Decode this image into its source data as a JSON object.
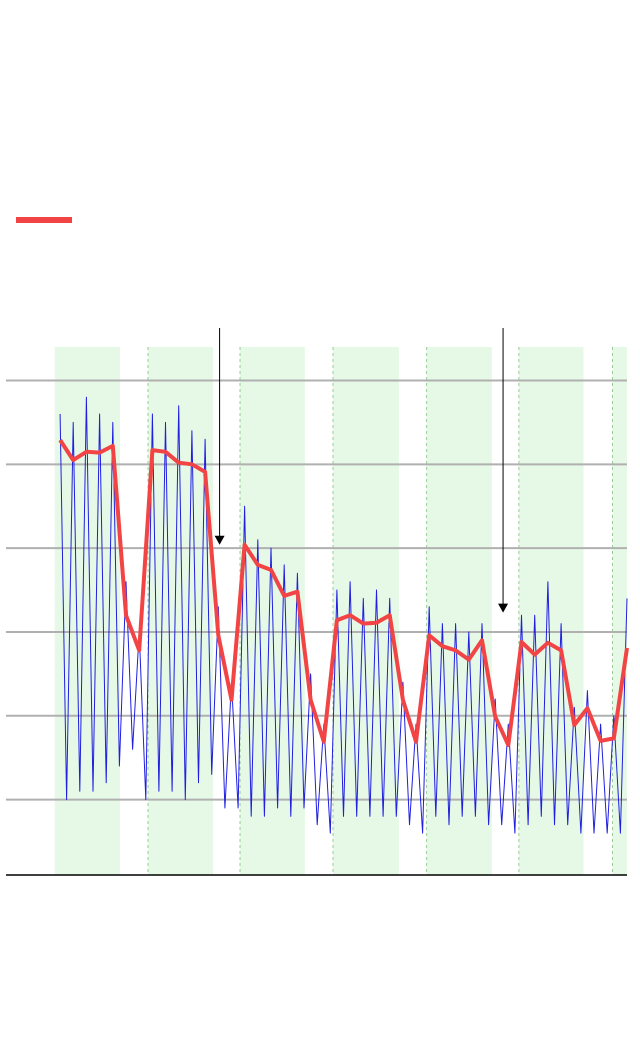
{
  "chart_data": {
    "type": "line",
    "xlim": [
      -4.1,
      43
    ],
    "ylim": [
      0.1,
      6.4
    ],
    "grid_lines": [
      1,
      2,
      3,
      4,
      5,
      6
    ],
    "bands": [
      [
        -0.4,
        4.55
      ],
      [
        6.67,
        11.6
      ],
      [
        13.65,
        18.57
      ],
      [
        20.7,
        25.7
      ],
      [
        27.8,
        32.75
      ],
      [
        34.8,
        39.7
      ],
      [
        41.9,
        43
      ]
    ],
    "band_color": "#e6f9e6",
    "arrows": [
      {
        "x": 12.1,
        "y": 4.04
      },
      {
        "x": 33.6,
        "y": 3.23
      }
    ],
    "series": [
      {
        "color": "#1f1fe0",
        "x": [
          0,
          0.5,
          1,
          1.5,
          2,
          2.5,
          3,
          3.5,
          4,
          4.5,
          5,
          5.5,
          6,
          6.5,
          7,
          7.5,
          8,
          8.5,
          9,
          9.5,
          10,
          10.5,
          11,
          11.5,
          12,
          12.5,
          13,
          13.5,
          14,
          14.5,
          15,
          15.5,
          16,
          16.5,
          17,
          17.5,
          18,
          18.5,
          19,
          19.5,
          20,
          20.5,
          21,
          21.5,
          22,
          22.5,
          23,
          23.5,
          24,
          24.5,
          25,
          25.5,
          26,
          26.5,
          27,
          27.5,
          28,
          28.5,
          29,
          29.5,
          30,
          30.5,
          31,
          31.5,
          32,
          32.5,
          33,
          33.5,
          34,
          34.5,
          35,
          35.5,
          36,
          36.5,
          37,
          37.5,
          38,
          38.5,
          39,
          39.5,
          40,
          40.5,
          41,
          41.5,
          42,
          42.5,
          43
        ],
        "values": [
          5.6,
          1.0,
          5.5,
          1.1,
          5.8,
          1.1,
          5.6,
          1.2,
          5.5,
          1.4,
          3.6,
          1.6,
          3.0,
          1.0,
          5.6,
          1.1,
          5.5,
          1.1,
          5.7,
          1.0,
          5.4,
          1.2,
          5.3,
          1.3,
          3.3,
          0.9,
          2.4,
          0.9,
          4.5,
          0.8,
          4.1,
          0.8,
          4.0,
          0.9,
          3.8,
          0.8,
          3.7,
          0.9,
          2.5,
          0.7,
          1.9,
          0.6,
          3.5,
          0.8,
          3.6,
          0.8,
          3.4,
          0.8,
          3.5,
          0.8,
          3.4,
          0.8,
          2.4,
          0.7,
          1.9,
          0.6,
          3.3,
          0.8,
          3.1,
          0.7,
          3.1,
          0.8,
          3.0,
          0.8,
          3.1,
          0.7,
          2.2,
          0.7,
          1.9,
          0.6,
          3.2,
          0.7,
          3.2,
          0.8,
          3.6,
          0.7,
          3.1,
          0.7,
          2.1,
          0.6,
          2.3,
          0.6,
          1.9,
          0.6,
          2.0,
          0.6,
          3.4
        ]
      },
      {
        "color": "#f24444",
        "x": [
          0,
          1,
          2,
          3,
          4,
          5,
          6,
          7,
          8,
          9,
          10,
          11,
          12,
          13,
          14,
          15,
          16,
          17,
          18,
          19,
          20,
          21,
          22,
          23,
          24,
          25,
          26,
          27,
          28,
          29,
          30,
          31,
          32,
          33,
          34,
          35,
          36,
          37,
          38,
          39,
          40,
          41,
          42,
          43
        ],
        "values": [
          5.29,
          5.05,
          5.15,
          5.14,
          5.22,
          3.2,
          2.78,
          5.17,
          5.15,
          5.02,
          5.0,
          4.91,
          2.96,
          2.19,
          4.04,
          3.8,
          3.74,
          3.43,
          3.48,
          2.19,
          1.69,
          3.14,
          3.2,
          3.1,
          3.11,
          3.2,
          2.19,
          1.69,
          2.96,
          2.83,
          2.78,
          2.67,
          2.9,
          1.99,
          1.65,
          2.88,
          2.73,
          2.87,
          2.78,
          1.89,
          2.09,
          1.7,
          1.73,
          2.81
        ]
      }
    ]
  }
}
